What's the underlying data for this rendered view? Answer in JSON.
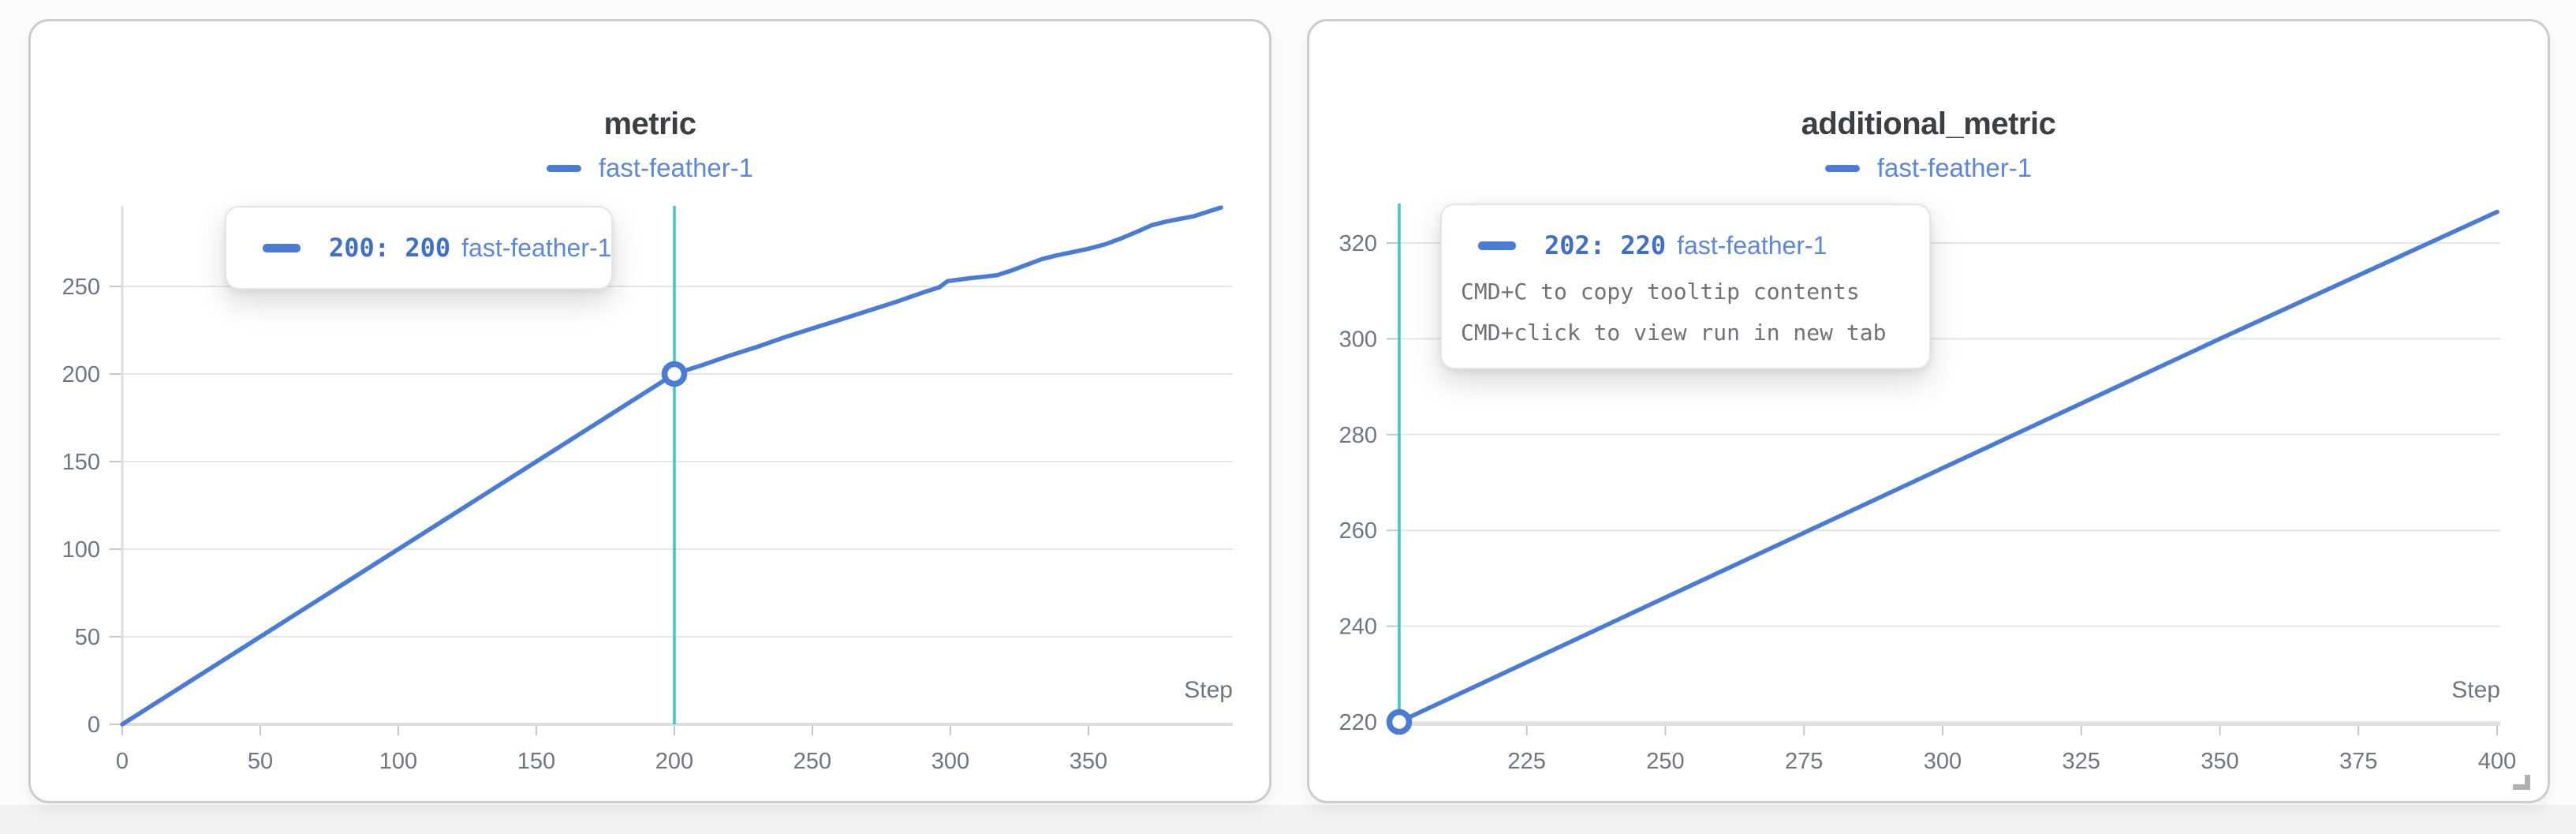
{
  "colors": {
    "accent_blue": "#4a7cd6",
    "run_blue": "#5b87dd",
    "number_blue": "#3e6fcb",
    "crosshair": "#3bc9c0",
    "grid_line": "#e5e6e8",
    "axis_line": "#dcdee0",
    "tick": "#c6c9cc",
    "axis_text": "#6e7681",
    "title_text": "#3b3e42",
    "hint_text": "#6f7377",
    "panel_border": "#cacccf",
    "tooltip_border": "#e4e5e7",
    "page_bg": "#fcfcfc",
    "footer_strip": "#eff1f2",
    "panel_bg": "#ffffff"
  },
  "chart_data": [
    {
      "type": "line",
      "title": "metric",
      "xlabel": "Step",
      "ylabel": "",
      "xlim": [
        0,
        398
      ],
      "ylim": [
        0,
        300
      ],
      "x_ticks": [
        0,
        50,
        100,
        150,
        200,
        250,
        300,
        350
      ],
      "y_ticks": [
        0,
        50,
        100,
        150,
        200,
        250
      ],
      "grid": true,
      "legend_position": "top-center",
      "series": [
        {
          "name": "fast-feather-1",
          "color": "#4a7cd6",
          "points": [
            [
              0,
              0
            ],
            [
              25,
              25
            ],
            [
              50,
              50
            ],
            [
              75,
              75
            ],
            [
              100,
              100
            ],
            [
              125,
              125
            ],
            [
              150,
              150
            ],
            [
              175,
              175
            ],
            [
              200,
              200
            ],
            [
              210,
              205
            ],
            [
              220,
              210.5
            ],
            [
              230,
              215.5
            ],
            [
              240,
              221
            ],
            [
              250,
              226
            ],
            [
              260,
              231
            ],
            [
              270,
              236
            ],
            [
              280,
              241
            ],
            [
              290,
              246.5
            ],
            [
              296,
              249.5
            ],
            [
              299,
              253
            ],
            [
              306,
              254.5
            ],
            [
              312,
              255.5
            ],
            [
              317,
              256.5
            ],
            [
              322,
              259
            ],
            [
              327,
              262
            ],
            [
              333,
              265.5
            ],
            [
              338,
              267.5
            ],
            [
              344,
              269.5
            ],
            [
              350,
              271.5
            ],
            [
              356,
              274
            ],
            [
              362,
              277.5
            ],
            [
              368,
              281.5
            ],
            [
              373,
              285
            ],
            [
              378,
              287
            ],
            [
              383,
              288.5
            ],
            [
              388,
              290
            ],
            [
              392,
              292
            ],
            [
              396,
              294
            ],
            [
              398,
              295
            ]
          ]
        }
      ],
      "crosshair": {
        "step": 200,
        "value": 200
      },
      "tooltip": {
        "value_text": "200: 200",
        "run_name": "fast-feather-1",
        "hints": []
      }
    },
    {
      "type": "line",
      "title": "additional_metric",
      "xlabel": "Step",
      "ylabel": "",
      "xlim": [
        202,
        400
      ],
      "ylim": [
        220,
        330
      ],
      "x_ticks": [
        225,
        250,
        275,
        300,
        325,
        350,
        375,
        400
      ],
      "y_ticks": [
        220,
        240,
        260,
        280,
        300,
        320
      ],
      "grid": true,
      "legend_position": "top-center",
      "series": [
        {
          "name": "fast-feather-1",
          "color": "#4a7cd6",
          "points": [
            [
              202,
              220
            ],
            [
              250,
              246
            ],
            [
              300,
              273
            ],
            [
              350,
              300
            ],
            [
              400,
              326.5
            ]
          ]
        }
      ],
      "crosshair": {
        "step": 202,
        "value": 220
      },
      "tooltip": {
        "value_text": "202: 220",
        "run_name": "fast-feather-1",
        "hints": [
          "CMD+C to copy tooltip contents",
          "CMD+click to view run in new tab"
        ]
      }
    }
  ]
}
